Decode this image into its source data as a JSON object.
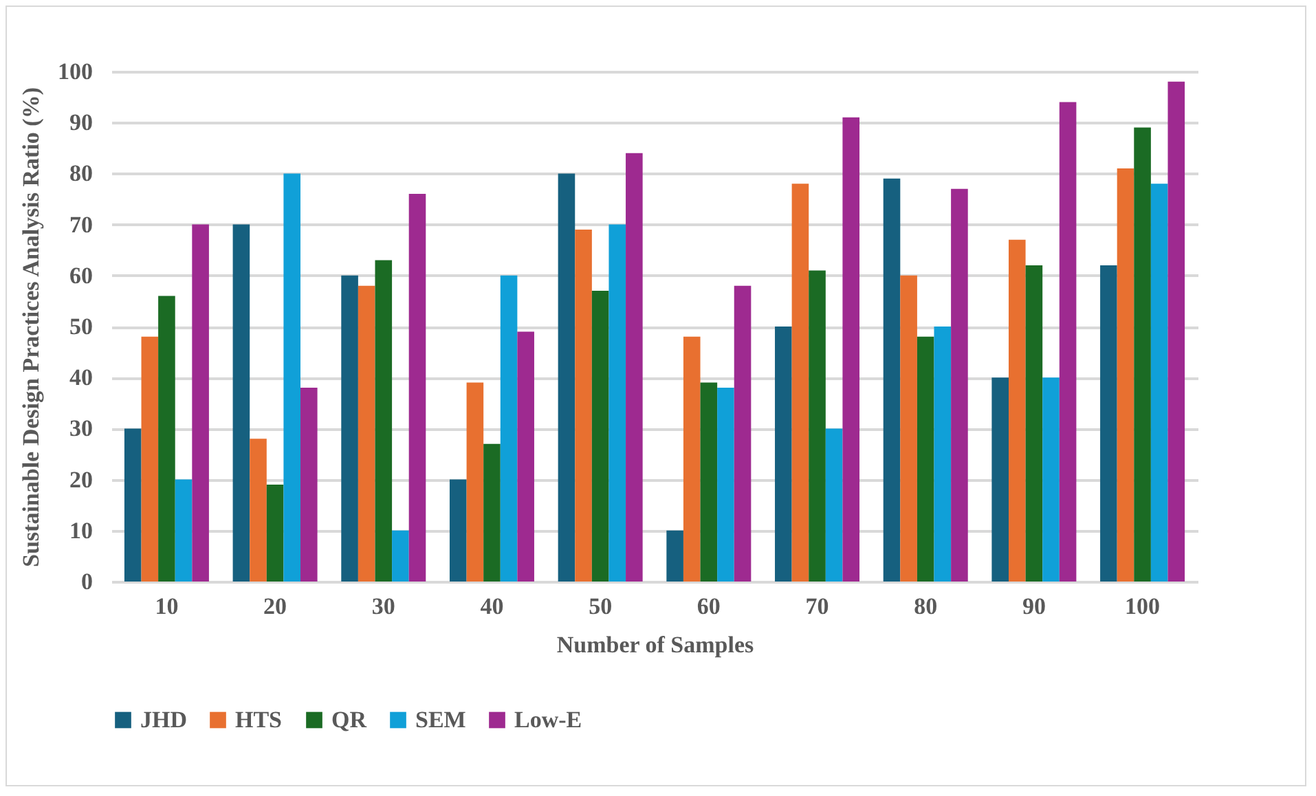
{
  "chart_data": {
    "type": "bar",
    "xlabel": "Number of Samples",
    "ylabel": "Sustainable Design Practices Analysis Ratio (%)",
    "categories": [
      "10",
      "20",
      "30",
      "40",
      "50",
      "60",
      "70",
      "80",
      "90",
      "100"
    ],
    "series": [
      {
        "name": "JHD",
        "color": "#16607f",
        "values": [
          30,
          70,
          60,
          20,
          80,
          10,
          50,
          79,
          40,
          62
        ]
      },
      {
        "name": "HTS",
        "color": "#e87030",
        "values": [
          48,
          28,
          58,
          39,
          69,
          48,
          78,
          60,
          67,
          81
        ]
      },
      {
        "name": "QR",
        "color": "#1b6b24",
        "values": [
          56,
          19,
          63,
          27,
          57,
          39,
          61,
          48,
          62,
          89
        ]
      },
      {
        "name": "SEM",
        "color": "#10a0d8",
        "values": [
          20,
          80,
          10,
          60,
          70,
          38,
          30,
          50,
          40,
          78
        ]
      },
      {
        "name": "Low-E",
        "color": "#9e2a90",
        "values": [
          70,
          38,
          76,
          49,
          84,
          58,
          91,
          77,
          94,
          98
        ]
      }
    ],
    "ylim": [
      0,
      100
    ],
    "yticks": [
      0,
      10,
      20,
      30,
      40,
      50,
      60,
      70,
      80,
      90,
      100
    ],
    "grid": "y",
    "legend": "bottom"
  }
}
